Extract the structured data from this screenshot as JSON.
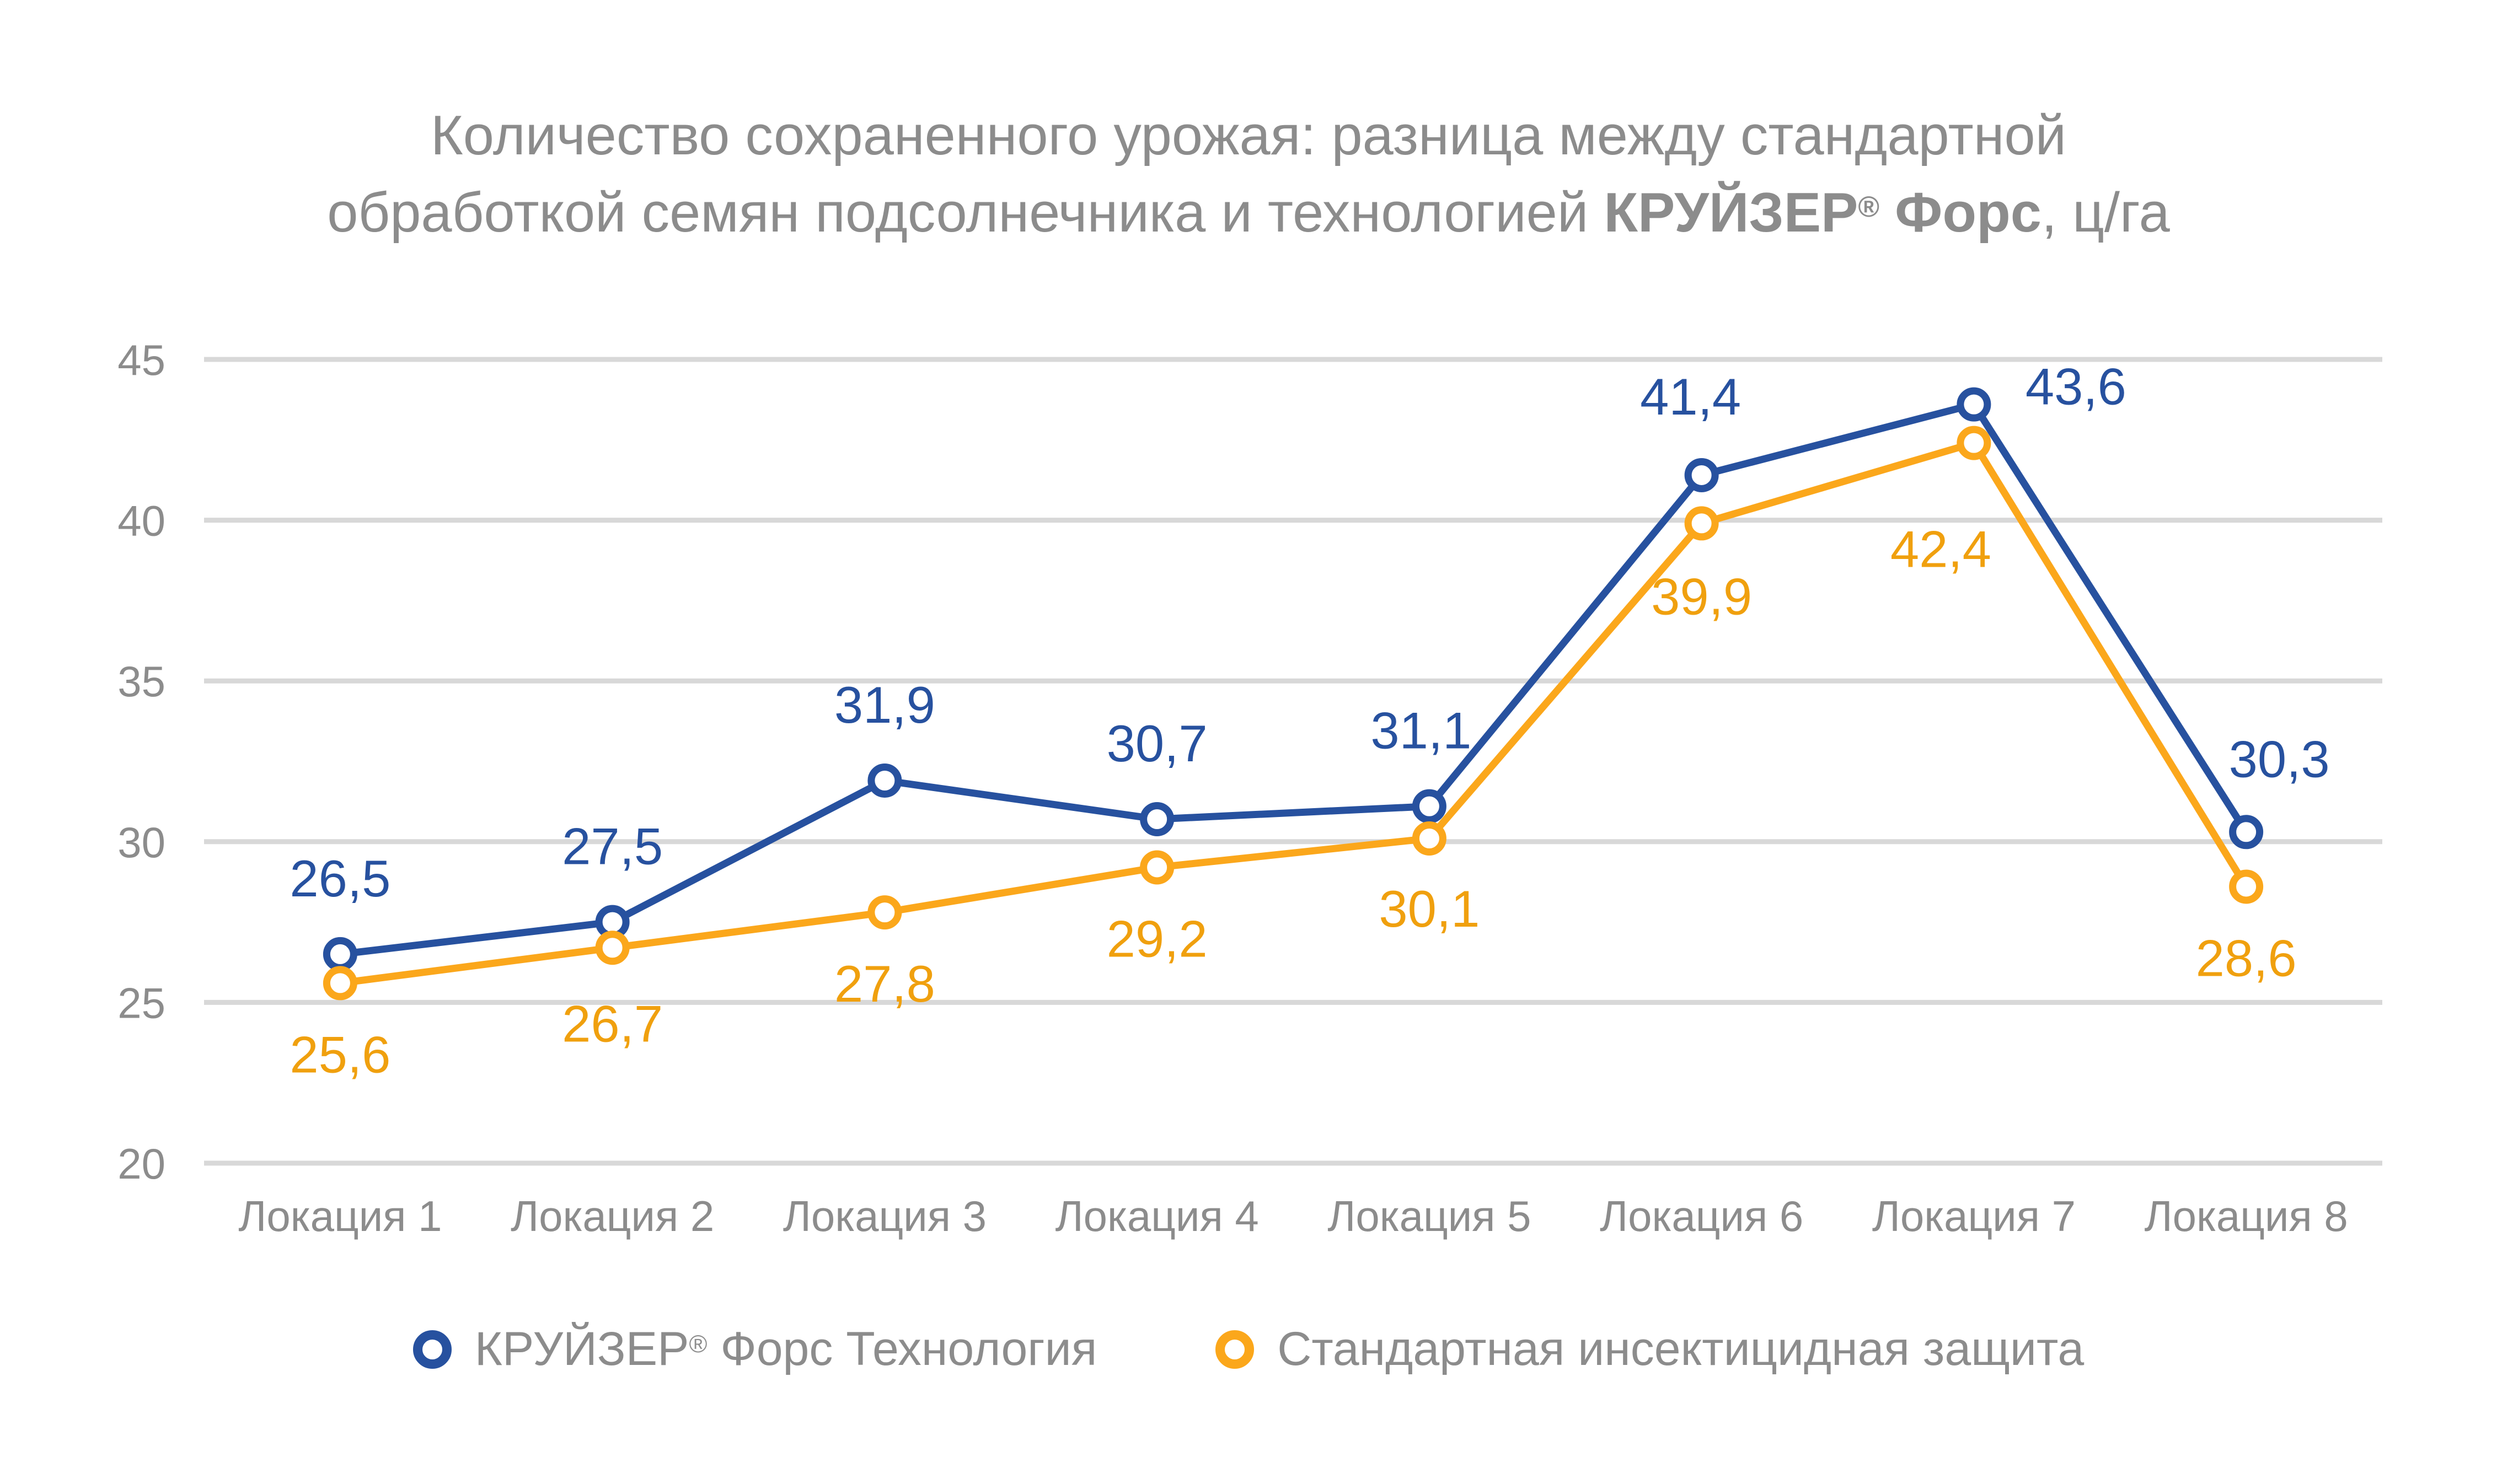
{
  "title": {
    "line1": "Количество сохраненного урожая: разница между стандартной",
    "line2_pre": "обработкой семян подсолнечника и технологией ",
    "line2_brand": "КРУЙЗЕР",
    "line2_reg": "®",
    "line2_brand2": " Форс",
    "line2_post": ", ц/га"
  },
  "legend": {
    "items": [
      {
        "pre": "КРУЙЗЕР",
        "reg": "®",
        "post": " Форс Технология",
        "color": "#27519F"
      },
      {
        "label": "Стандартная инсектицидная защита",
        "color": "#FBA71B"
      }
    ]
  },
  "chart_data": {
    "type": "line",
    "title": "Количество сохраненного урожая: разница между стандартной обработкой семян подсолнечника и технологией КРУЙЗЕР® Форс, ц/га",
    "unit": "ц/га",
    "categories": [
      "Локация 1",
      "Локация 2",
      "Локация 3",
      "Локация 4",
      "Локация 5",
      "Локация 6",
      "Локация 7",
      "Локация 8"
    ],
    "series": [
      {
        "name": "КРУЙЗЕР® Форс Технология",
        "color": "#27519F",
        "label_color": "#27519F",
        "values": [
          26.5,
          27.5,
          31.9,
          30.7,
          31.1,
          41.4,
          43.6,
          30.3
        ],
        "labels": [
          "26,5",
          "27,5",
          "31,9",
          "30,7",
          "31,1",
          "41,4",
          "43,6",
          "30,3"
        ],
        "label_offsets": [
          [
            0,
            -105
          ],
          [
            0,
            -105
          ],
          [
            0,
            -105
          ],
          [
            0,
            -105
          ],
          [
            -15,
            -105
          ],
          [
            -20,
            -110
          ],
          [
            185,
            0
          ],
          [
            60,
            -100
          ]
        ]
      },
      {
        "name": "Стандартная инсектицидная защита",
        "color": "#FBA71B",
        "label_color": "#F0A00E",
        "values": [
          25.6,
          26.7,
          27.8,
          29.2,
          30.1,
          39.9,
          42.4,
          28.6
        ],
        "labels": [
          "25,6",
          "26,7",
          "27,8",
          "29,2",
          "30,1",
          "39,9",
          "42,4",
          "28,6"
        ],
        "label_offsets": [
          [
            0,
            162
          ],
          [
            0,
            170
          ],
          [
            0,
            162
          ],
          [
            0,
            162
          ],
          [
            0,
            160
          ],
          [
            0,
            165
          ],
          [
            -60,
            225
          ],
          [
            0,
            162
          ]
        ]
      }
    ],
    "y_axis": {
      "min": 20,
      "max": 45,
      "ticks": [
        45,
        40,
        35,
        30,
        25,
        20
      ]
    },
    "grid": true,
    "legend_position": "bottom",
    "marker": "open-circle",
    "grid_color": "#D8D8D8",
    "axis_text_color": "#8C8C8C",
    "title_color": "#8C8C8C"
  }
}
